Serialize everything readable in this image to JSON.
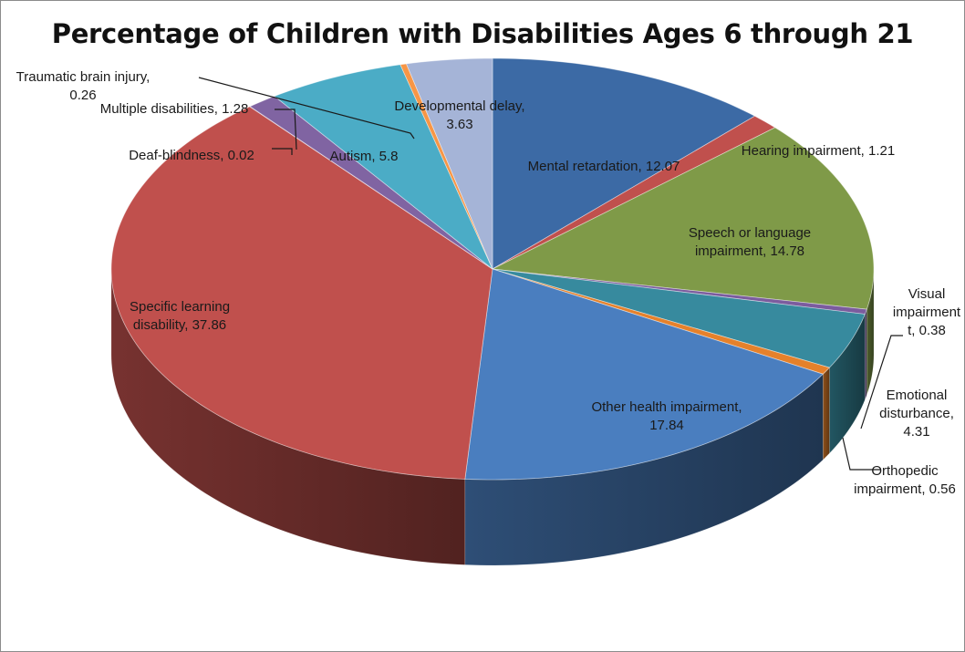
{
  "chart_data": {
    "type": "pie",
    "title": "Percentage of Children with Disabilities Ages 6 through 21",
    "slices": [
      {
        "label": "Mental retardation",
        "value": 12.07,
        "color": "#3c6aa5",
        "label_lines": [
          "Mental retardation, 12.07"
        ]
      },
      {
        "label": "Hearing impairment",
        "value": 1.21,
        "color": "#c0504d",
        "label_lines": [
          "Hearing impairment, 1.21"
        ]
      },
      {
        "label": "Speech or language impairment",
        "value": 14.78,
        "color": "#7f9a48",
        "label_lines": [
          "Speech or language",
          "impairment, 14.78"
        ]
      },
      {
        "label": "Visual impairment",
        "value": 0.38,
        "color": "#7b5c9e",
        "label_lines": [
          "Visual",
          "impairment",
          "t, 0.38"
        ]
      },
      {
        "label": "Emotional disturbance",
        "value": 4.31,
        "color": "#378a9e",
        "label_lines": [
          "Emotional",
          "disturbance,",
          "4.31"
        ]
      },
      {
        "label": "Orthopedic impairment",
        "value": 0.56,
        "color": "#e5812b",
        "label_lines": [
          "Orthopedic",
          "impairment, 0.56"
        ]
      },
      {
        "label": "Other health impairment",
        "value": 17.84,
        "color": "#4a7ebf",
        "label_lines": [
          "Other health impairment,",
          "17.84"
        ]
      },
      {
        "label": "Specific learning disability",
        "value": 37.86,
        "color": "#c0504d",
        "label_lines": [
          "Specific learning",
          "disability, 37.86"
        ]
      },
      {
        "label": "Deaf-blindness",
        "value": 0.02,
        "color": "#8064a2",
        "label_lines": [
          "Deaf-blindness, 0.02"
        ]
      },
      {
        "label": "Multiple disabilities",
        "value": 1.28,
        "color": "#8064a2",
        "label_lines": [
          "Multiple disabilities, 1.28"
        ]
      },
      {
        "label": "Autism",
        "value": 5.8,
        "color": "#4bacc6",
        "label_lines": [
          "Autism, 5.8"
        ]
      },
      {
        "label": "Traumatic brain injury",
        "value": 0.26,
        "color": "#f79646",
        "label_lines": [
          "Traumatic brain injury,",
          "0.26"
        ]
      },
      {
        "label": "Developmental delay",
        "value": 3.63,
        "color": "#a5b4d7",
        "label_lines": [
          "Developmental delay,",
          "3.63"
        ]
      }
    ]
  }
}
